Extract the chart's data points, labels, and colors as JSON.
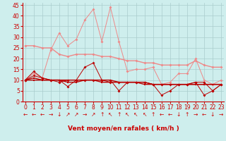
{
  "xlabel": "Vent moyen/en rafales ( km/h )",
  "background_color": "#ceeeed",
  "grid_color": "#aacccc",
  "x_ticks": [
    0,
    1,
    2,
    3,
    4,
    5,
    6,
    7,
    8,
    9,
    10,
    11,
    12,
    13,
    14,
    15,
    16,
    17,
    18,
    19,
    20,
    21,
    22,
    23
  ],
  "y_ticks": [
    0,
    5,
    10,
    15,
    20,
    25,
    30,
    35,
    40,
    45
  ],
  "ylim": [
    0,
    46
  ],
  "xlim": [
    -0.3,
    23.3
  ],
  "line1_color": "#ee8888",
  "line1_y": [
    10,
    13,
    11,
    24,
    32,
    26,
    29,
    38,
    43,
    28,
    44,
    28,
    14,
    15,
    15,
    16,
    8,
    9,
    13,
    13,
    20,
    10,
    8,
    10
  ],
  "line2_color": "#ee8888",
  "line2_y": [
    26,
    26,
    25,
    25,
    22,
    21,
    22,
    22,
    22,
    21,
    21,
    20,
    19,
    19,
    18,
    18,
    17,
    17,
    17,
    17,
    19,
    17,
    16,
    16
  ],
  "line3_color": "#bb0000",
  "line3_y": [
    10,
    14,
    11,
    10,
    10,
    7,
    10,
    16,
    18,
    10,
    10,
    5,
    9,
    9,
    9,
    8,
    3,
    5,
    8,
    8,
    9,
    3,
    5,
    8
  ],
  "line4_color": "#bb0000",
  "line4_y": [
    10,
    11,
    10,
    10,
    10,
    9,
    9,
    10,
    10,
    10,
    10,
    9,
    9,
    9,
    9,
    8,
    8,
    8,
    8,
    8,
    8,
    8,
    8,
    8
  ],
  "line5_color": "#bb0000",
  "line5_y": [
    10,
    10,
    10,
    10,
    10,
    10,
    10,
    10,
    10,
    9,
    9,
    9,
    9,
    9,
    8,
    8,
    8,
    8,
    8,
    8,
    8,
    8,
    8,
    8
  ],
  "line6_color": "#bb0000",
  "line6_y": [
    10,
    12,
    11,
    10,
    9,
    10,
    10,
    10,
    10,
    10,
    9,
    9,
    9,
    9,
    9,
    8,
    8,
    8,
    8,
    8,
    9,
    9,
    5,
    8
  ],
  "arrow_symbols": [
    "←",
    "←",
    "←",
    "→",
    "↓",
    "↗",
    "↗",
    "→",
    "↗",
    "↑",
    "↖",
    "↑",
    "↖",
    "↖",
    "↖",
    "↑",
    "←",
    "←",
    "↓",
    "↑",
    "→",
    "←",
    "↓",
    "→"
  ],
  "marker_size": 2.0,
  "linewidth_thin": 0.7,
  "linewidth_thick": 1.0,
  "tick_fontsize": 5.5,
  "xlabel_fontsize": 6.5,
  "arrow_fontsize": 5.5,
  "red_color": "#cc0000"
}
